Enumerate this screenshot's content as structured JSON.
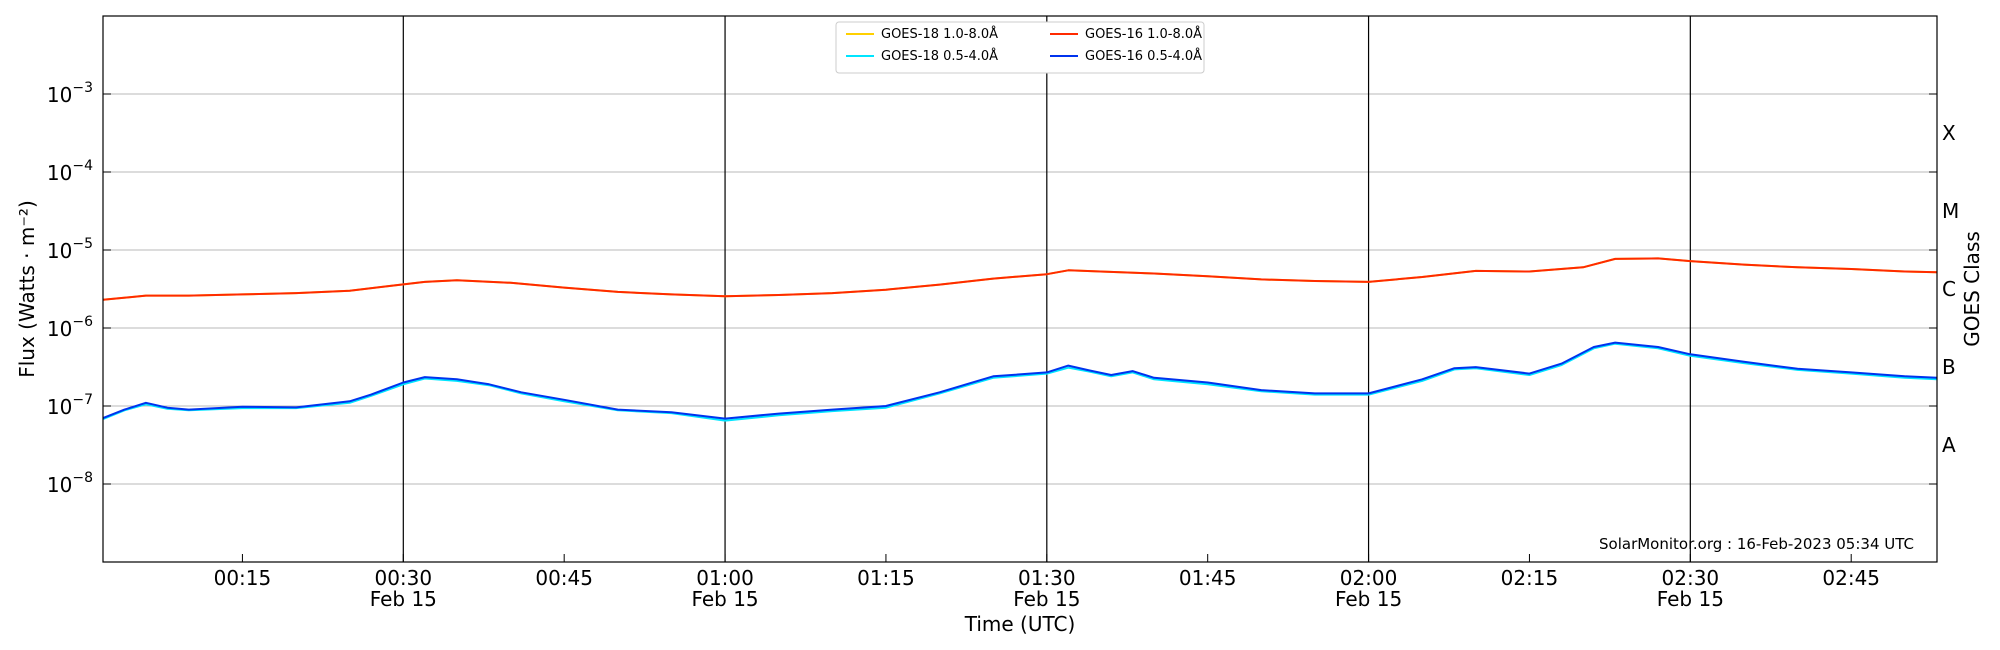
{
  "chart_data": {
    "type": "line",
    "xlabel": "Time (UTC)",
    "ylabel": "Flux (Watts · m⁻²)",
    "right_axis_label": "GOES Class",
    "y_scale": "log",
    "ylim": [
      1e-09,
      0.01
    ],
    "xlim": [
      "2023-02-15 00:02",
      "2023-02-15 02:53"
    ],
    "grid": "horizontal at decades",
    "legend_position": "top-center",
    "credit": "SolarMonitor.org : 16-Feb-2023 05:34 UTC",
    "y_ticks": [
      {
        "value": 1e-08,
        "label": "10",
        "exp": "−8"
      },
      {
        "value": 1e-07,
        "label": "10",
        "exp": "−7"
      },
      {
        "value": 1e-06,
        "label": "10",
        "exp": "−6"
      },
      {
        "value": 1e-05,
        "label": "10",
        "exp": "−5"
      },
      {
        "value": 0.0001,
        "label": "10",
        "exp": "−4"
      },
      {
        "value": 0.001,
        "label": "10",
        "exp": "−3"
      }
    ],
    "class_labels": [
      {
        "label": "X",
        "value": 0.000316
      },
      {
        "label": "M",
        "value": 3.16e-05
      },
      {
        "label": "C",
        "value": 3.16e-06
      },
      {
        "label": "B",
        "value": 3.16e-07
      },
      {
        "label": "A",
        "value": 3.16e-08
      }
    ],
    "x_ticks": [
      {
        "time": "00:15",
        "date": ""
      },
      {
        "time": "00:30",
        "date": "Feb 15"
      },
      {
        "time": "00:45",
        "date": ""
      },
      {
        "time": "01:00",
        "date": "Feb 15"
      },
      {
        "time": "01:15",
        "date": ""
      },
      {
        "time": "01:30",
        "date": "Feb 15"
      },
      {
        "time": "01:45",
        "date": ""
      },
      {
        "time": "02:00",
        "date": "Feb 15"
      },
      {
        "time": "02:15",
        "date": ""
      },
      {
        "time": "02:30",
        "date": "Feb 15"
      },
      {
        "time": "02:45",
        "date": ""
      }
    ],
    "vertical_lines": [
      "00:30",
      "01:00",
      "01:30",
      "02:00",
      "02:30"
    ],
    "series": [
      {
        "name": "GOES-18 1.0-8.0Å",
        "color": "#ffd000",
        "x": [
          "00:02",
          "00:06",
          "00:10",
          "00:15",
          "00:20",
          "00:25",
          "00:29",
          "00:32",
          "00:35",
          "00:40",
          "00:45",
          "00:50",
          "00:55",
          "01:00",
          "01:05",
          "01:10",
          "01:15",
          "01:20",
          "01:25",
          "01:30",
          "01:32",
          "01:35",
          "01:40",
          "01:45",
          "01:50",
          "01:55",
          "02:00",
          "02:05",
          "02:10",
          "02:15",
          "02:20",
          "02:23",
          "02:27",
          "02:30",
          "02:35",
          "02:40",
          "02:45",
          "02:50",
          "02:53"
        ],
        "values": [
          2.3e-06,
          2.6e-06,
          2.6e-06,
          2.7e-06,
          2.8e-06,
          3e-06,
          3.5e-06,
          3.9e-06,
          4.1e-06,
          3.8e-06,
          3.3e-06,
          2.9e-06,
          2.7e-06,
          2.55e-06,
          2.65e-06,
          2.8e-06,
          3.1e-06,
          3.6e-06,
          4.3e-06,
          4.9e-06,
          5.5e-06,
          5.3e-06,
          5e-06,
          4.6e-06,
          4.2e-06,
          4e-06,
          3.9e-06,
          4.5e-06,
          5.4e-06,
          5.3e-06,
          6e-06,
          7.7e-06,
          7.8e-06,
          7.2e-06,
          6.5e-06,
          6e-06,
          5.7e-06,
          5.3e-06,
          5.2e-06
        ]
      },
      {
        "name": "GOES-18 0.5-4.0Å",
        "color": "#00e5ff",
        "x": [
          "00:02",
          "00:04",
          "00:06",
          "00:08",
          "00:10",
          "00:15",
          "00:20",
          "00:25",
          "00:27",
          "00:30",
          "00:32",
          "00:35",
          "00:38",
          "00:41",
          "00:45",
          "00:50",
          "00:55",
          "01:00",
          "01:05",
          "01:10",
          "01:15",
          "01:20",
          "01:25",
          "01:30",
          "01:32",
          "01:34",
          "01:36",
          "01:38",
          "01:40",
          "01:45",
          "01:50",
          "01:55",
          "02:00",
          "02:05",
          "02:08",
          "02:10",
          "02:15",
          "02:18",
          "02:21",
          "02:23",
          "02:27",
          "02:30",
          "02:35",
          "02:40",
          "02:45",
          "02:50",
          "02:53"
        ],
        "values": [
          6.8e-08,
          8.8e-08,
          1.05e-07,
          9.2e-08,
          8.8e-08,
          9.4e-08,
          9.4e-08,
          1.1e-07,
          1.35e-07,
          1.9e-07,
          2.25e-07,
          2.1e-07,
          1.85e-07,
          1.45e-07,
          1.15e-07,
          8.8e-08,
          8.1e-08,
          6.5e-08,
          7.6e-08,
          8.6e-08,
          9.5e-08,
          1.45e-07,
          2.3e-07,
          2.6e-07,
          3.1e-07,
          2.75e-07,
          2.4e-07,
          2.7e-07,
          2.2e-07,
          1.9e-07,
          1.55e-07,
          1.4e-07,
          1.4e-07,
          2.1e-07,
          2.95e-07,
          3.05e-07,
          2.5e-07,
          3.35e-07,
          5.5e-07,
          6.3e-07,
          5.5e-07,
          4.4e-07,
          3.55e-07,
          2.9e-07,
          2.6e-07,
          2.3e-07,
          2.2e-07
        ]
      },
      {
        "name": "GOES-16 1.0-8.0Å",
        "color": "#ff2a00",
        "x": [
          "00:02",
          "00:06",
          "00:10",
          "00:15",
          "00:20",
          "00:25",
          "00:29",
          "00:32",
          "00:35",
          "00:40",
          "00:45",
          "00:50",
          "00:55",
          "01:00",
          "01:05",
          "01:10",
          "01:15",
          "01:20",
          "01:25",
          "01:30",
          "01:32",
          "01:35",
          "01:40",
          "01:45",
          "01:50",
          "01:55",
          "02:00",
          "02:05",
          "02:10",
          "02:15",
          "02:20",
          "02:23",
          "02:27",
          "02:30",
          "02:35",
          "02:40",
          "02:45",
          "02:50",
          "02:53"
        ],
        "values": [
          2.3e-06,
          2.6e-06,
          2.6e-06,
          2.7e-06,
          2.8e-06,
          3e-06,
          3.5e-06,
          3.9e-06,
          4.1e-06,
          3.8e-06,
          3.3e-06,
          2.9e-06,
          2.7e-06,
          2.55e-06,
          2.65e-06,
          2.8e-06,
          3.1e-06,
          3.6e-06,
          4.3e-06,
          4.9e-06,
          5.5e-06,
          5.3e-06,
          5e-06,
          4.6e-06,
          4.2e-06,
          4e-06,
          3.9e-06,
          4.5e-06,
          5.4e-06,
          5.3e-06,
          6e-06,
          7.7e-06,
          7.8e-06,
          7.2e-06,
          6.5e-06,
          6e-06,
          5.7e-06,
          5.3e-06,
          5.2e-06
        ]
      },
      {
        "name": "GOES-16 0.5-4.0Å",
        "color": "#0033ee",
        "x": [
          "00:02",
          "00:04",
          "00:06",
          "00:08",
          "00:10",
          "00:15",
          "00:20",
          "00:25",
          "00:27",
          "00:30",
          "00:32",
          "00:35",
          "00:38",
          "00:41",
          "00:45",
          "00:50",
          "00:55",
          "01:00",
          "01:05",
          "01:10",
          "01:15",
          "01:20",
          "01:25",
          "01:30",
          "01:32",
          "01:34",
          "01:36",
          "01:38",
          "01:40",
          "01:45",
          "01:50",
          "01:55",
          "02:00",
          "02:05",
          "02:08",
          "02:10",
          "02:15",
          "02:18",
          "02:21",
          "02:23",
          "02:27",
          "02:30",
          "02:35",
          "02:40",
          "02:45",
          "02:50",
          "02:53"
        ],
        "values": [
          7e-08,
          9e-08,
          1.1e-07,
          9.5e-08,
          9e-08,
          9.8e-08,
          9.6e-08,
          1.15e-07,
          1.4e-07,
          2e-07,
          2.35e-07,
          2.2e-07,
          1.9e-07,
          1.5e-07,
          1.2e-07,
          9e-08,
          8.3e-08,
          6.9e-08,
          8e-08,
          9e-08,
          1e-07,
          1.5e-07,
          2.4e-07,
          2.7e-07,
          3.3e-07,
          2.85e-07,
          2.5e-07,
          2.8e-07,
          2.3e-07,
          2e-07,
          1.6e-07,
          1.45e-07,
          1.45e-07,
          2.2e-07,
          3.05e-07,
          3.15e-07,
          2.6e-07,
          3.5e-07,
          5.7e-07,
          6.5e-07,
          5.7e-07,
          4.6e-07,
          3.7e-07,
          3e-07,
          2.7e-07,
          2.4e-07,
          2.3e-07
        ]
      }
    ]
  }
}
